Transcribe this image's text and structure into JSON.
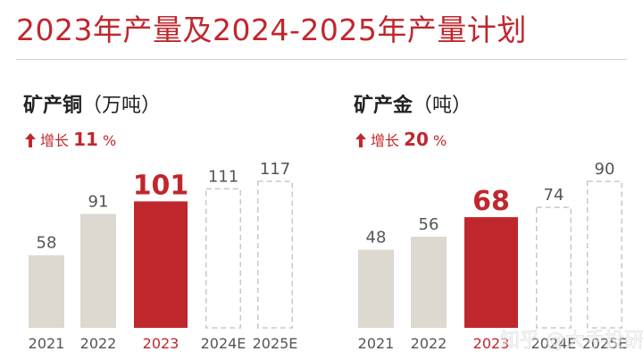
{
  "title": "2023年产量及2024-2025年产量计划",
  "colors": {
    "accent": "#c0272d",
    "history_bar": "#ddd8d0",
    "plan_border": "#c8c8c8",
    "text_gray": "#555555"
  },
  "chart_data": [
    {
      "type": "bar",
      "title": "矿产铜",
      "unit": "（万吨）",
      "growth_label": "增长",
      "growth_value": "11",
      "growth_suffix": "%",
      "categories": [
        "2021",
        "2022",
        "2023",
        "2024E",
        "2025E"
      ],
      "values": [
        58,
        91,
        101,
        111,
        117
      ],
      "highlight": "2023",
      "planned": [
        "2024E",
        "2025E"
      ],
      "ylim": [
        0,
        117
      ]
    },
    {
      "type": "bar",
      "title": "矿产金",
      "unit": "（吨）",
      "growth_label": "增长",
      "growth_value": "20",
      "growth_suffix": "%",
      "categories": [
        "2021",
        "2022",
        "2023",
        "2024E",
        "2025E"
      ],
      "values": [
        48,
        56,
        68,
        74,
        90
      ],
      "highlight": "2023",
      "planned": [
        "2024E",
        "2025E"
      ],
      "ylim": [
        0,
        90
      ]
    }
  ],
  "watermark": "知乎 @大手投研"
}
